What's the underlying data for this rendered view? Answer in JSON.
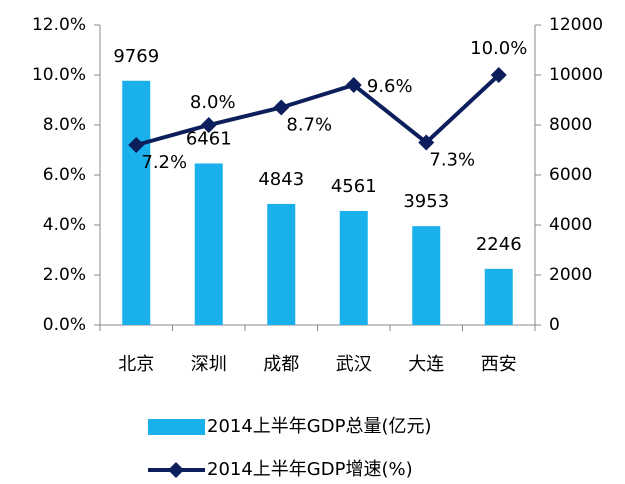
{
  "chart_data": {
    "type": "combo",
    "categories": [
      "北京",
      "深圳",
      "成都",
      "武汉",
      "大连",
      "西安"
    ],
    "series": [
      {
        "name": "2014上半年GDP总量(亿元)",
        "type": "bar",
        "axis": "y2",
        "color": "#19b0ec",
        "values": [
          9769,
          6461,
          4843,
          4561,
          3953,
          2246
        ]
      },
      {
        "name": "2014上半年GDP增速(%)",
        "type": "line",
        "axis": "y",
        "color": "#0c1e5b",
        "values": [
          7.2,
          8.0,
          8.7,
          9.6,
          7.3,
          10.0
        ],
        "value_labels": [
          "7.2%",
          "8.0%",
          "8.7%",
          "9.6%",
          "7.3%",
          "10.0%"
        ]
      }
    ],
    "ylim": [
      0,
      12
    ],
    "yticks": [
      {
        "value": 0,
        "label": "0.0%"
      },
      {
        "value": 2,
        "label": "2.0%"
      },
      {
        "value": 4,
        "label": "4.0%"
      },
      {
        "value": 6,
        "label": "6.0%"
      },
      {
        "value": 8,
        "label": "8.0%"
      },
      {
        "value": 10,
        "label": "10.0%"
      },
      {
        "value": 12,
        "label": "12.0%"
      }
    ],
    "y2lim": [
      0,
      12000
    ],
    "y2ticks": [
      0,
      2000,
      4000,
      6000,
      8000,
      10000,
      12000
    ],
    "legend": "bottom"
  }
}
